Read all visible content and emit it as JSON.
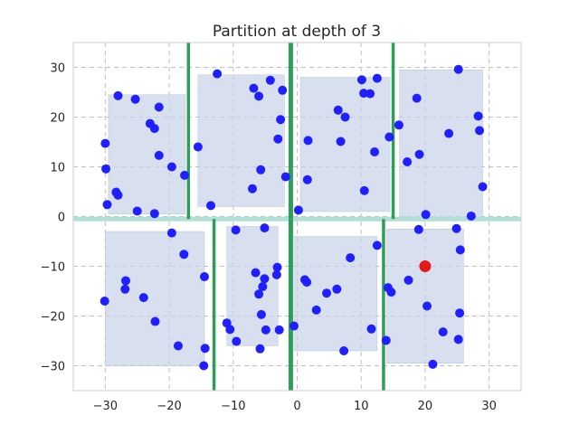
{
  "chart_data": {
    "type": "scatter",
    "title": "Partition at depth of 3",
    "xlabel": "",
    "ylabel": "",
    "xlim": [
      -35,
      35
    ],
    "ylim": [
      -35,
      35
    ],
    "xticks": [
      -30,
      -20,
      -10,
      0,
      10,
      20,
      30
    ],
    "yticks": [
      -30,
      -20,
      -10,
      0,
      10,
      20,
      30
    ],
    "grid": true,
    "colors": {
      "points": "#1f1fff",
      "query_point": "#e41a1c",
      "region_fill": "#c8d2e8",
      "split_depth1": "#2e9e5b",
      "split_depth0": "#b0e0d6",
      "axes_bg": "#ffffff",
      "grid": "#c0c0c0"
    },
    "splits": [
      {
        "axis": "y",
        "value": -0.5,
        "range": [
          -35,
          35
        ],
        "depth": 0
      },
      {
        "axis": "x",
        "value": -1,
        "range": [
          -0.5,
          35
        ],
        "depth": 1
      },
      {
        "axis": "x",
        "value": -1,
        "range": [
          -35,
          -0.5
        ],
        "depth": 1
      },
      {
        "axis": "x",
        "value": -17,
        "range": [
          -0.5,
          35
        ],
        "depth": 2
      },
      {
        "axis": "x",
        "value": 15,
        "range": [
          -0.5,
          35
        ],
        "depth": 2
      },
      {
        "axis": "x",
        "value": -13,
        "range": [
          -35,
          -0.5
        ],
        "depth": 2
      },
      {
        "axis": "x",
        "value": 13.5,
        "range": [
          -35,
          -0.5
        ],
        "depth": 2
      }
    ],
    "regions": [
      {
        "x": [
          -29.5,
          -17.5
        ],
        "y": [
          0.5,
          24.5
        ]
      },
      {
        "x": [
          -15.5,
          -2
        ],
        "y": [
          2,
          28.5
        ]
      },
      {
        "x": [
          0.5,
          14.5
        ],
        "y": [
          1,
          28
        ]
      },
      {
        "x": [
          16,
          29
        ],
        "y": [
          -0.5,
          29.5
        ]
      },
      {
        "x": [
          -30,
          -14.5
        ],
        "y": [
          -30,
          -3
        ]
      },
      {
        "x": [
          -11,
          -3
        ],
        "y": [
          -26,
          -2
        ]
      },
      {
        "x": [
          -0.5,
          12.5
        ],
        "y": [
          -27,
          -4
        ]
      },
      {
        "x": [
          14,
          26
        ],
        "y": [
          -29.5,
          -2.5
        ]
      }
    ],
    "points": [
      {
        "x": -28,
        "y": 24.3
      },
      {
        "x": -25.3,
        "y": 23.6
      },
      {
        "x": -23,
        "y": 18.7
      },
      {
        "x": -22.3,
        "y": 17.7
      },
      {
        "x": -21.6,
        "y": 22
      },
      {
        "x": -30,
        "y": 14.7
      },
      {
        "x": -29.9,
        "y": 9.6
      },
      {
        "x": -21.6,
        "y": 12.3
      },
      {
        "x": -19.6,
        "y": 10
      },
      {
        "x": -17.6,
        "y": 8.3
      },
      {
        "x": -28.3,
        "y": 4.9
      },
      {
        "x": -28,
        "y": 4.3
      },
      {
        "x": -29.7,
        "y": 2.4
      },
      {
        "x": -25,
        "y": 1.1
      },
      {
        "x": -22.3,
        "y": 0.6
      },
      {
        "x": -12.5,
        "y": 28.7
      },
      {
        "x": -15.5,
        "y": 14
      },
      {
        "x": -13.5,
        "y": 2.2
      },
      {
        "x": -6.8,
        "y": 25.8
      },
      {
        "x": -6,
        "y": 24.2
      },
      {
        "x": -4.2,
        "y": 27.4
      },
      {
        "x": -2.3,
        "y": 25.4
      },
      {
        "x": -2.6,
        "y": 19.5
      },
      {
        "x": -3,
        "y": 15.6
      },
      {
        "x": -5.7,
        "y": 9.4
      },
      {
        "x": -7,
        "y": 5.6
      },
      {
        "x": -1.8,
        "y": 8
      },
      {
        "x": 0.2,
        "y": 1.3
      },
      {
        "x": 10.1,
        "y": 27.5
      },
      {
        "x": 12.5,
        "y": 27.8
      },
      {
        "x": 10.4,
        "y": 24.8
      },
      {
        "x": 11.4,
        "y": 24.7
      },
      {
        "x": 6.4,
        "y": 21.4
      },
      {
        "x": 7.5,
        "y": 20
      },
      {
        "x": 1.7,
        "y": 15.3
      },
      {
        "x": 6.8,
        "y": 15.1
      },
      {
        "x": 12.1,
        "y": 13
      },
      {
        "x": 14.4,
        "y": 16
      },
      {
        "x": 1.6,
        "y": 7.4
      },
      {
        "x": 10.5,
        "y": 5.2
      },
      {
        "x": 25.2,
        "y": 29.6
      },
      {
        "x": 18.7,
        "y": 23.8
      },
      {
        "x": 15.9,
        "y": 18.4
      },
      {
        "x": 28.3,
        "y": 20.2
      },
      {
        "x": 23.7,
        "y": 16.7
      },
      {
        "x": 28.5,
        "y": 17.3
      },
      {
        "x": 19.1,
        "y": 12.5
      },
      {
        "x": 17.2,
        "y": 11
      },
      {
        "x": 29,
        "y": 6
      },
      {
        "x": 20.1,
        "y": 0.4
      },
      {
        "x": 27.2,
        "y": 0.1
      },
      {
        "x": -30.1,
        "y": -17
      },
      {
        "x": -26.8,
        "y": -12.9
      },
      {
        "x": -26.9,
        "y": -14.6
      },
      {
        "x": -24,
        "y": -16.3
      },
      {
        "x": -22.2,
        "y": -21.1
      },
      {
        "x": -19.6,
        "y": -3.3
      },
      {
        "x": -17.7,
        "y": -7.6
      },
      {
        "x": -18.6,
        "y": -26
      },
      {
        "x": -14.5,
        "y": -12.1
      },
      {
        "x": -14.4,
        "y": -26.5
      },
      {
        "x": -14.6,
        "y": -30
      },
      {
        "x": -9.6,
        "y": -2.7
      },
      {
        "x": -11,
        "y": -21.4
      },
      {
        "x": -10.5,
        "y": -22.7
      },
      {
        "x": -9.5,
        "y": -25.1
      },
      {
        "x": -6.5,
        "y": -11.3
      },
      {
        "x": -5.1,
        "y": -12.5
      },
      {
        "x": -5.4,
        "y": -14.1
      },
      {
        "x": -6,
        "y": -15.6
      },
      {
        "x": -5.6,
        "y": -19.7
      },
      {
        "x": -4.9,
        "y": -22.8
      },
      {
        "x": -5.8,
        "y": -26.6
      },
      {
        "x": -5.1,
        "y": -2.3
      },
      {
        "x": -3.1,
        "y": -10.2
      },
      {
        "x": -3.2,
        "y": -11.7
      },
      {
        "x": -2.8,
        "y": -22.8
      },
      {
        "x": -0.5,
        "y": -22
      },
      {
        "x": 1.2,
        "y": -12.7
      },
      {
        "x": 1.5,
        "y": -13.2
      },
      {
        "x": 3,
        "y": -18.8
      },
      {
        "x": 4.6,
        "y": -15.4
      },
      {
        "x": 6.2,
        "y": -14.6
      },
      {
        "x": 8.3,
        "y": -8.3
      },
      {
        "x": 7.3,
        "y": -27
      },
      {
        "x": 11.6,
        "y": -22.6
      },
      {
        "x": 12.5,
        "y": -5.8
      },
      {
        "x": 14.2,
        "y": -14.3
      },
      {
        "x": 14.7,
        "y": -15.2
      },
      {
        "x": 13.9,
        "y": -24.9
      },
      {
        "x": 17.4,
        "y": -12.8
      },
      {
        "x": 19,
        "y": -2.6
      },
      {
        "x": 20.3,
        "y": -18
      },
      {
        "x": 24.9,
        "y": -2.4
      },
      {
        "x": 25.5,
        "y": -6.7
      },
      {
        "x": 25.4,
        "y": -19.4
      },
      {
        "x": 25.2,
        "y": -24.7
      },
      {
        "x": 22.8,
        "y": -23.2
      },
      {
        "x": 21.2,
        "y": -29.7
      }
    ],
    "query_point": {
      "x": 20,
      "y": -10
    }
  }
}
